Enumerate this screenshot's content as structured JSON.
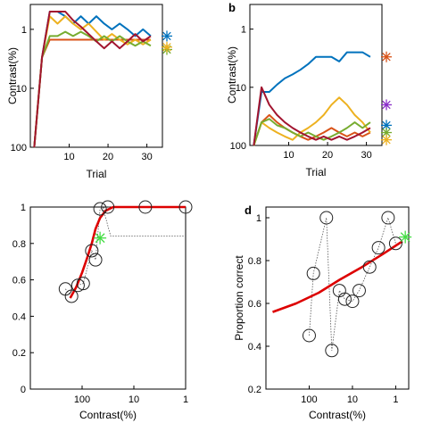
{
  "chart_data": [
    {
      "panel": "",
      "type": "line",
      "xlabel": "Trial",
      "ylabel": "Contrast(%)",
      "xlim": [
        0,
        34
      ],
      "ylim": [
        100,
        0.5
      ],
      "y_scale": "log",
      "y_reversed": true,
      "xticks": [
        "10",
        "20",
        "30"
      ],
      "yticks": [
        "1",
        "10",
        "100"
      ],
      "series": [
        {
          "color": "#0072bd",
          "x": [
            1,
            3,
            5,
            7,
            9,
            11,
            13,
            15,
            17,
            19,
            21,
            23,
            25,
            27,
            29,
            31
          ],
          "y": [
            100,
            3,
            0.5,
            0.5,
            0.6,
            0.8,
            0.6,
            0.8,
            0.6,
            0.8,
            1.0,
            0.8,
            1.0,
            1.3,
            1.0,
            1.3
          ]
        },
        {
          "color": "#d95319",
          "x": [
            1,
            3,
            5,
            7,
            9,
            11,
            13,
            15,
            17,
            19,
            21,
            23,
            25,
            27,
            29,
            31
          ],
          "y": [
            100,
            3,
            1.5,
            1.5,
            1.5,
            1.5,
            1.5,
            1.5,
            1.5,
            1.5,
            1.5,
            1.5,
            1.5,
            1.5,
            1.5,
            1.5
          ]
        },
        {
          "color": "#edb120",
          "x": [
            1,
            3,
            5,
            7,
            9,
            11,
            13,
            15,
            17,
            19,
            21,
            23,
            25,
            27,
            29,
            31
          ],
          "y": [
            100,
            3,
            0.6,
            0.8,
            0.6,
            0.8,
            1.0,
            0.8,
            1.1,
            1.5,
            1.2,
            1.5,
            1.8,
            1.5,
            1.8,
            1.5
          ]
        },
        {
          "color": "#77ac30",
          "x": [
            1,
            3,
            5,
            7,
            9,
            11,
            13,
            15,
            17,
            19,
            21,
            23,
            25,
            27,
            29,
            31
          ],
          "y": [
            100,
            3,
            1.3,
            1.3,
            1.1,
            1.3,
            1.1,
            1.3,
            1.6,
            1.3,
            1.6,
            1.3,
            1.6,
            1.9,
            1.6,
            1.9
          ]
        },
        {
          "color": "#a2142f",
          "x": [
            1,
            3,
            5,
            7,
            9,
            11,
            13,
            15,
            17,
            19,
            21,
            23,
            25,
            27,
            29,
            31
          ],
          "y": [
            100,
            3,
            0.5,
            0.5,
            0.5,
            0.7,
            0.9,
            1.2,
            1.6,
            2.1,
            1.6,
            2.1,
            1.6,
            1.2,
            1.6,
            1.3
          ]
        }
      ],
      "end_markers": [
        {
          "color": "#0072bd",
          "y": 1.3
        },
        {
          "color": "#77ac30",
          "y": 2.2
        },
        {
          "color": "#edb120",
          "y": 2.0
        }
      ]
    },
    {
      "panel": "b",
      "type": "line",
      "xlabel": "Trial",
      "ylabel": "Contrast(%)",
      "xlim": [
        0,
        34
      ],
      "ylim": [
        100,
        0.5
      ],
      "y_scale": "log",
      "y_reversed": true,
      "xticks": [
        "10",
        "20",
        "30"
      ],
      "yticks": [
        "1",
        "10",
        "100"
      ],
      "series": [
        {
          "color": "#0072bd",
          "x": [
            1,
            3,
            5,
            7,
            9,
            11,
            13,
            15,
            17,
            19,
            21,
            23,
            25,
            27,
            29,
            31
          ],
          "y": [
            100,
            12,
            12,
            9,
            7,
            6,
            5,
            4,
            3,
            3,
            3,
            3.6,
            2.5,
            2.5,
            2.5,
            3
          ]
        },
        {
          "color": "#d95319",
          "x": [
            1,
            3,
            5,
            7,
            9,
            11,
            13,
            15,
            17,
            19,
            21,
            23,
            25,
            27,
            29,
            31
          ],
          "y": [
            100,
            40,
            30,
            40,
            50,
            60,
            70,
            80,
            70,
            60,
            50,
            60,
            70,
            60,
            70,
            60
          ]
        },
        {
          "color": "#edb120",
          "x": [
            1,
            3,
            5,
            7,
            9,
            11,
            13,
            15,
            17,
            19,
            21,
            23,
            25,
            27,
            29,
            31
          ],
          "y": [
            100,
            40,
            50,
            60,
            70,
            80,
            60,
            50,
            40,
            30,
            20,
            15,
            20,
            30,
            40,
            60
          ]
        },
        {
          "color": "#77ac30",
          "x": [
            1,
            3,
            5,
            7,
            9,
            11,
            13,
            15,
            17,
            19,
            21,
            23,
            25,
            27,
            29,
            31
          ],
          "y": [
            100,
            40,
            35,
            45,
            50,
            60,
            70,
            60,
            70,
            80,
            70,
            60,
            50,
            40,
            50,
            40
          ]
        },
        {
          "color": "#a2142f",
          "x": [
            1,
            3,
            5,
            7,
            9,
            11,
            13,
            15,
            17,
            19,
            21,
            23,
            25,
            27,
            29,
            31
          ],
          "y": [
            100,
            10,
            20,
            30,
            40,
            50,
            60,
            70,
            80,
            70,
            80,
            70,
            80,
            70,
            60,
            50
          ]
        }
      ],
      "end_markers": [
        {
          "color": "#d95319",
          "y": 3
        },
        {
          "color": "#8b2fc9",
          "y": 20
        },
        {
          "color": "#0072bd",
          "y": 45
        },
        {
          "color": "#77ac30",
          "y": 60
        },
        {
          "color": "#edb120",
          "y": 80
        }
      ]
    },
    {
      "panel": "",
      "type": "scatter",
      "xlabel": "Contrast(%)",
      "ylabel": "",
      "x_scale": "log",
      "x_reversed": true,
      "xlim": [
        1000,
        1
      ],
      "ylim": [
        0,
        1
      ],
      "xticks": [
        "100",
        "10",
        "1"
      ],
      "yticks": [
        "0",
        "0.2",
        "0.4",
        "0.6",
        "0.8",
        "1"
      ],
      "points": [
        {
          "x": 210,
          "y": 0.55
        },
        {
          "x": 160,
          "y": 0.51
        },
        {
          "x": 120,
          "y": 0.57
        },
        {
          "x": 95,
          "y": 0.58
        },
        {
          "x": 65,
          "y": 0.76
        },
        {
          "x": 55,
          "y": 0.71
        },
        {
          "x": 45,
          "y": 0.99
        },
        {
          "x": 32,
          "y": 1.0
        },
        {
          "x": 6,
          "y": 1.0
        },
        {
          "x": 1,
          "y": 1.0
        }
      ],
      "fit": {
        "color": "#dd0000",
        "x": [
          170,
          130,
          100,
          80,
          65,
          55,
          45,
          35,
          25,
          15,
          5,
          1
        ],
        "y": [
          0.5,
          0.56,
          0.64,
          0.72,
          0.8,
          0.88,
          0.94,
          0.98,
          1.0,
          1.0,
          1.0,
          1.0
        ]
      },
      "dotted": {
        "x": [
          40,
          28,
          1
        ],
        "y": [
          1.0,
          0.84,
          0.84
        ]
      },
      "marker": {
        "color": "#44dd44",
        "x": 45,
        "y": 0.83
      }
    },
    {
      "panel": "d",
      "type": "scatter",
      "xlabel": "Contrast(%)",
      "ylabel": "Proportion correct",
      "x_scale": "log",
      "x_reversed": true,
      "xlim": [
        1000,
        0.5
      ],
      "ylim": [
        0.2,
        1.05
      ],
      "xticks": [
        "100",
        "10",
        "1"
      ],
      "yticks": [
        "0.2",
        "0.4",
        "0.6",
        "0.8",
        "1"
      ],
      "points": [
        {
          "x": 100,
          "y": 0.45
        },
        {
          "x": 80,
          "y": 0.74
        },
        {
          "x": 40,
          "y": 1.0
        },
        {
          "x": 30,
          "y": 0.38
        },
        {
          "x": 20,
          "y": 0.66
        },
        {
          "x": 15,
          "y": 0.62
        },
        {
          "x": 10,
          "y": 0.61
        },
        {
          "x": 7,
          "y": 0.66
        },
        {
          "x": 4,
          "y": 0.77
        },
        {
          "x": 2.5,
          "y": 0.86
        },
        {
          "x": 1.5,
          "y": 1.0
        },
        {
          "x": 1.0,
          "y": 0.88
        }
      ],
      "fit": {
        "color": "#dd0000",
        "x": [
          700,
          200,
          60,
          20,
          6,
          2,
          0.7
        ],
        "y": [
          0.56,
          0.6,
          0.65,
          0.71,
          0.77,
          0.83,
          0.89
        ]
      },
      "marker": {
        "color": "#44dd44",
        "x": 0.6,
        "y": 0.91
      }
    }
  ]
}
